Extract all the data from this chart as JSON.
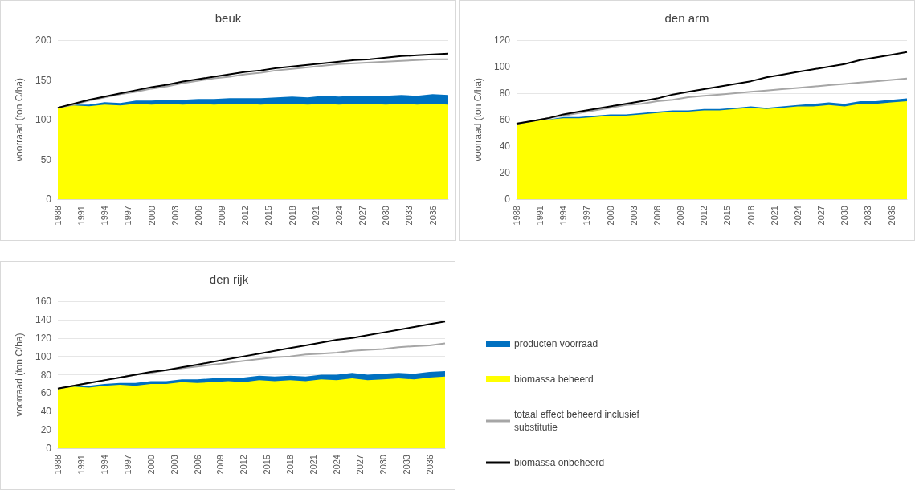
{
  "chart_data": [
    {
      "type": "area",
      "title": "beuk",
      "ylabel": "voorraad (ton C/ha)",
      "stacked": true,
      "grid": "y",
      "legend": false,
      "marker": "none",
      "x": [
        1988,
        1990,
        1992,
        1994,
        1996,
        1998,
        2000,
        2002,
        2004,
        2006,
        2008,
        2010,
        2012,
        2014,
        2016,
        2018,
        2020,
        2022,
        2024,
        2026,
        2028,
        2030,
        2032,
        2034,
        2036,
        2038
      ],
      "xlim": [
        1988,
        2038
      ],
      "xticks": [
        1988,
        1991,
        1994,
        1997,
        2000,
        2003,
        2006,
        2009,
        2012,
        2015,
        2018,
        2021,
        2024,
        2027,
        2030,
        2033,
        2036
      ],
      "ylim": [
        0,
        200
      ],
      "yticks": [
        0,
        50,
        100,
        150,
        200
      ],
      "series": [
        {
          "type": "area",
          "color": "#ffff00",
          "values": [
            115,
            118,
            117,
            119,
            118,
            120,
            119,
            120,
            119,
            120,
            119,
            120,
            120,
            119,
            120,
            120,
            119,
            120,
            119,
            120,
            120,
            119,
            120,
            119,
            120,
            119
          ]
        },
        {
          "type": "area",
          "color": "#0070c0",
          "values": [
            0,
            1,
            2,
            3,
            3,
            4,
            5,
            5,
            6,
            6,
            7,
            7,
            7,
            8,
            8,
            9,
            9,
            10,
            10,
            10,
            10,
            11,
            11,
            11,
            12,
            12
          ]
        },
        {
          "type": "line",
          "color": "#a6a6a6",
          "values": [
            115,
            119,
            124,
            128,
            132,
            135,
            139,
            142,
            146,
            149,
            152,
            154,
            157,
            159,
            162,
            164,
            166,
            168,
            170,
            171,
            172,
            173,
            174,
            175,
            176,
            176
          ]
        },
        {
          "type": "line",
          "color": "#000000",
          "values": [
            115,
            120,
            125,
            129,
            133,
            137,
            141,
            144,
            148,
            151,
            154,
            157,
            160,
            162,
            165,
            167,
            169,
            171,
            173,
            175,
            176,
            178,
            180,
            181,
            182,
            183
          ]
        }
      ]
    },
    {
      "type": "area",
      "title": "den arm",
      "ylabel": "voorraad (ton C/ha)",
      "stacked": true,
      "grid": "y",
      "legend": false,
      "marker": "none",
      "x": [
        1988,
        1990,
        1992,
        1994,
        1996,
        1998,
        2000,
        2002,
        2004,
        2006,
        2008,
        2010,
        2012,
        2014,
        2016,
        2018,
        2020,
        2022,
        2024,
        2026,
        2028,
        2030,
        2032,
        2034,
        2036,
        2038
      ],
      "xlim": [
        1988,
        2038
      ],
      "xticks": [
        1988,
        1991,
        1994,
        1997,
        2000,
        2003,
        2006,
        2009,
        2012,
        2015,
        2018,
        2021,
        2024,
        2027,
        2030,
        2033,
        2036
      ],
      "ylim": [
        0,
        120
      ],
      "yticks": [
        0,
        20,
        40,
        60,
        80,
        100,
        120
      ],
      "series": [
        {
          "type": "area",
          "color": "#ffff00",
          "values": [
            57,
            59,
            60,
            61,
            61,
            62,
            63,
            63,
            64,
            65,
            66,
            66,
            67,
            67,
            68,
            69,
            68,
            69,
            70,
            70,
            71,
            70,
            72,
            72,
            73,
            74
          ]
        },
        {
          "type": "area",
          "color": "#0070c0",
          "values": [
            0,
            0,
            0,
            1,
            1,
            1,
            1,
            1,
            1,
            1,
            1,
            1,
            1,
            1,
            1,
            1,
            1,
            1,
            1,
            2,
            2,
            2,
            2,
            2,
            2,
            2
          ]
        },
        {
          "type": "line",
          "color": "#a6a6a6",
          "values": [
            57,
            59,
            61,
            63,
            65,
            67,
            69,
            71,
            72,
            74,
            75,
            77,
            78,
            79,
            80,
            81,
            82,
            83,
            84,
            85,
            86,
            87,
            88,
            89,
            90,
            91
          ]
        },
        {
          "type": "line",
          "color": "#000000",
          "values": [
            57,
            59,
            61,
            64,
            66,
            68,
            70,
            72,
            74,
            76,
            79,
            81,
            83,
            85,
            87,
            89,
            92,
            94,
            96,
            98,
            100,
            102,
            105,
            107,
            109,
            111
          ]
        }
      ]
    },
    {
      "type": "area",
      "title": "den rijk",
      "ylabel": "voorraad (ton C/ha)",
      "stacked": true,
      "grid": "y",
      "legend": "right",
      "marker": "none",
      "x": [
        1988,
        1990,
        1992,
        1994,
        1996,
        1998,
        2000,
        2002,
        2004,
        2006,
        2008,
        2010,
        2012,
        2014,
        2016,
        2018,
        2020,
        2022,
        2024,
        2026,
        2028,
        2030,
        2032,
        2034,
        2036,
        2038
      ],
      "xlim": [
        1988,
        2038
      ],
      "xticks": [
        1988,
        1991,
        1994,
        1997,
        2000,
        2003,
        2006,
        2009,
        2012,
        2015,
        2018,
        2021,
        2024,
        2027,
        2030,
        2033,
        2036
      ],
      "ylim": [
        0,
        160
      ],
      "yticks": [
        0,
        20,
        40,
        60,
        80,
        100,
        120,
        140,
        160
      ],
      "series": [
        {
          "type": "area",
          "name": "biomassa beheerd",
          "color": "#ffff00",
          "values": [
            65,
            67,
            66,
            68,
            69,
            68,
            70,
            70,
            72,
            71,
            72,
            73,
            72,
            74,
            73,
            74,
            73,
            75,
            74,
            76,
            74,
            75,
            76,
            75,
            77,
            78
          ]
        },
        {
          "type": "area",
          "name": "producten voorraad",
          "color": "#0070c0",
          "values": [
            0,
            1,
            2,
            2,
            2,
            3,
            3,
            3,
            3,
            4,
            4,
            4,
            5,
            5,
            5,
            5,
            5,
            5,
            6,
            6,
            6,
            6,
            6,
            6,
            6,
            6
          ]
        },
        {
          "type": "line",
          "name": "totaal effect beheerd inclusief substitutie",
          "color": "#a6a6a6",
          "values": [
            65,
            68,
            71,
            74,
            77,
            80,
            82,
            85,
            87,
            89,
            91,
            93,
            95,
            97,
            99,
            100,
            102,
            103,
            104,
            106,
            107,
            108,
            110,
            111,
            112,
            114
          ]
        },
        {
          "type": "line",
          "name": "biomassa onbeheerd",
          "color": "#000000",
          "values": [
            65,
            68,
            71,
            74,
            77,
            80,
            83,
            85,
            88,
            91,
            94,
            97,
            100,
            103,
            106,
            109,
            112,
            115,
            118,
            120,
            123,
            126,
            129,
            132,
            135,
            138
          ]
        }
      ]
    }
  ]
}
